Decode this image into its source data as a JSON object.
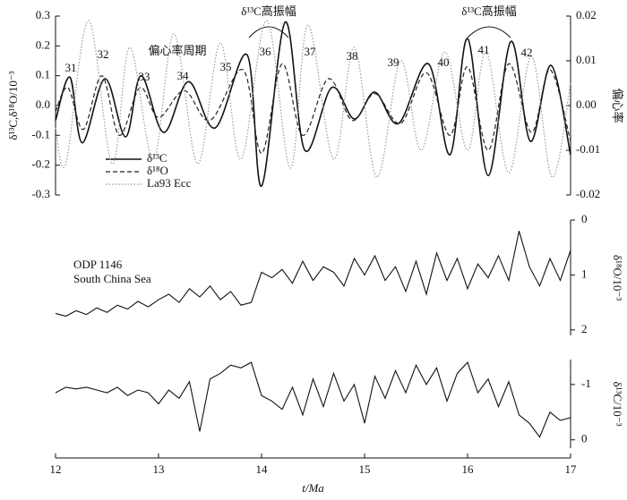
{
  "chart_data": [
    {
      "type": "line",
      "smooth": true,
      "ylabel": "δ¹³C,δ¹⁸O/10⁻³",
      "y2label": "偏心率",
      "xlim": [
        12,
        17
      ],
      "ylim": [
        -0.3,
        0.3
      ],
      "yticks": [
        0.3,
        0.2,
        0.1,
        {
          "value": 0,
          "label": "0.0"
        },
        -0.1,
        -0.2,
        -0.3
      ],
      "y2lim": [
        -0.02,
        0.02
      ],
      "y2ticks": [
        0.02,
        0.01,
        {
          "value": 0,
          "label": "0.00"
        },
        -0.01,
        -0.02
      ],
      "cycle_labels": [
        "31",
        "32",
        "33",
        "34",
        "35",
        "36",
        "37",
        "38",
        "39",
        "40",
        "41",
        "42"
      ],
      "annotations": [
        "偏心率周期",
        "δ¹³C高振幅",
        "δ¹³C高振幅"
      ],
      "series": [
        {
          "name": "δ¹³C",
          "color": "#111111",
          "dash": "solid",
          "x": [
            12.0,
            12.14,
            12.26,
            12.48,
            12.68,
            12.83,
            13.05,
            13.29,
            13.55,
            13.86,
            14.0,
            14.23,
            14.42,
            14.68,
            14.9,
            15.1,
            15.33,
            15.62,
            15.83,
            16.0,
            16.2,
            16.42,
            16.61,
            16.81,
            17.0
          ],
          "values": [
            -0.05,
            0.095,
            -0.125,
            0.09,
            -0.105,
            0.1,
            -0.09,
            0.08,
            -0.075,
            0.17,
            -0.27,
            0.28,
            -0.15,
            0.06,
            -0.045,
            0.045,
            -0.06,
            0.14,
            -0.165,
            0.225,
            -0.235,
            0.215,
            -0.12,
            0.135,
            -0.165
          ]
        },
        {
          "name": "δ¹⁸O",
          "color": "#222222",
          "dash": "dashed",
          "x": [
            12.0,
            12.12,
            12.27,
            12.45,
            12.62,
            12.82,
            13.0,
            13.25,
            13.5,
            13.82,
            14.0,
            14.2,
            14.4,
            14.65,
            14.88,
            15.1,
            15.35,
            15.6,
            15.83,
            16.0,
            16.2,
            16.4,
            16.62,
            16.8,
            17.0
          ],
          "values": [
            -0.02,
            0.06,
            -0.08,
            0.1,
            -0.1,
            0.06,
            -0.04,
            0.05,
            -0.05,
            0.12,
            -0.16,
            0.14,
            -0.1,
            0.09,
            -0.05,
            0.04,
            -0.06,
            0.11,
            -0.1,
            0.13,
            -0.15,
            0.14,
            -0.09,
            0.12,
            -0.12
          ]
        },
        {
          "name": "La93 Ecc",
          "color": "#999999",
          "dash": "dotted",
          "axis": "y2",
          "x": [
            12.0,
            12.1,
            12.32,
            12.55,
            12.72,
            12.95,
            13.15,
            13.38,
            13.6,
            13.8,
            14.05,
            14.28,
            14.45,
            14.7,
            14.9,
            15.12,
            15.35,
            15.55,
            15.78,
            16.0,
            16.18,
            16.4,
            16.62,
            16.82,
            17.0
          ],
          "values": [
            -0.005,
            -0.013,
            0.019,
            -0.013,
            0.013,
            -0.012,
            0.016,
            -0.013,
            0.014,
            -0.012,
            0.019,
            -0.014,
            0.018,
            -0.012,
            0.013,
            -0.016,
            0.01,
            -0.01,
            0.012,
            -0.01,
            0.012,
            -0.015,
            0.011,
            -0.016,
            0.005
          ]
        }
      ]
    },
    {
      "type": "line",
      "ylabel": "δ¹⁸O/10⁻³",
      "annotations": [
        "ODP 1146",
        "South China Sea"
      ],
      "xlim": [
        12,
        17
      ],
      "ylim": [
        0,
        2.1
      ],
      "y_inverted": true,
      "yticks": [
        0,
        1,
        2
      ],
      "color": "#111111",
      "x": [
        12.0,
        12.1,
        12.2,
        12.3,
        12.4,
        12.5,
        12.6,
        12.7,
        12.8,
        12.9,
        13.0,
        13.1,
        13.2,
        13.3,
        13.4,
        13.5,
        13.6,
        13.7,
        13.8,
        13.9,
        14.0,
        14.1,
        14.2,
        14.3,
        14.4,
        14.5,
        14.6,
        14.7,
        14.8,
        14.9,
        15.0,
        15.1,
        15.2,
        15.3,
        15.4,
        15.5,
        15.6,
        15.7,
        15.8,
        15.9,
        16.0,
        16.1,
        16.2,
        16.3,
        16.4,
        16.5,
        16.6,
        16.7,
        16.8,
        16.9,
        17.0
      ],
      "values": [
        1.7,
        1.75,
        1.65,
        1.72,
        1.6,
        1.68,
        1.55,
        1.62,
        1.48,
        1.58,
        1.45,
        1.35,
        1.5,
        1.25,
        1.4,
        1.2,
        1.45,
        1.3,
        1.55,
        1.5,
        0.95,
        1.05,
        0.9,
        1.15,
        0.75,
        1.1,
        0.85,
        0.95,
        1.2,
        0.7,
        1.0,
        0.65,
        1.1,
        0.85,
        1.3,
        0.75,
        1.35,
        0.6,
        1.1,
        0.7,
        1.25,
        0.8,
        1.05,
        0.65,
        1.1,
        0.2,
        0.85,
        1.2,
        0.7,
        1.1,
        0.55
      ]
    },
    {
      "type": "line",
      "ylabel": "δ¹³C/10⁻³",
      "xlabel": "t/Ma",
      "xlim": [
        12,
        17
      ],
      "xticks": [
        12,
        13,
        14,
        15,
        16,
        17
      ],
      "ylim": [
        -1.45,
        0.15
      ],
      "y_inverted": true,
      "yticks": [
        -1,
        0
      ],
      "color": "#111111",
      "x": [
        12.0,
        12.1,
        12.2,
        12.3,
        12.4,
        12.5,
        12.6,
        12.7,
        12.8,
        12.9,
        13.0,
        13.1,
        13.2,
        13.3,
        13.4,
        13.5,
        13.6,
        13.7,
        13.8,
        13.9,
        14.0,
        14.1,
        14.2,
        14.3,
        14.4,
        14.5,
        14.6,
        14.7,
        14.8,
        14.9,
        15.0,
        15.1,
        15.2,
        15.3,
        15.4,
        15.5,
        15.6,
        15.7,
        15.8,
        15.9,
        16.0,
        16.1,
        16.2,
        16.3,
        16.4,
        16.5,
        16.6,
        16.7,
        16.8,
        16.9,
        17.0
      ],
      "values": [
        -0.85,
        -0.95,
        -0.92,
        -0.95,
        -0.9,
        -0.85,
        -0.95,
        -0.8,
        -0.9,
        -0.85,
        -0.65,
        -0.9,
        -0.75,
        -1.05,
        -0.15,
        -1.1,
        -1.2,
        -1.35,
        -1.3,
        -1.4,
        -0.8,
        -0.7,
        -0.55,
        -0.95,
        -0.45,
        -1.1,
        -0.6,
        -1.2,
        -0.7,
        -1.0,
        -0.3,
        -1.15,
        -0.75,
        -1.25,
        -0.85,
        -1.35,
        -1.0,
        -1.3,
        -0.7,
        -1.2,
        -1.4,
        -0.85,
        -1.1,
        -0.6,
        -1.05,
        -0.45,
        -0.3,
        -0.05,
        -0.5,
        -0.35,
        -0.4
      ]
    }
  ]
}
